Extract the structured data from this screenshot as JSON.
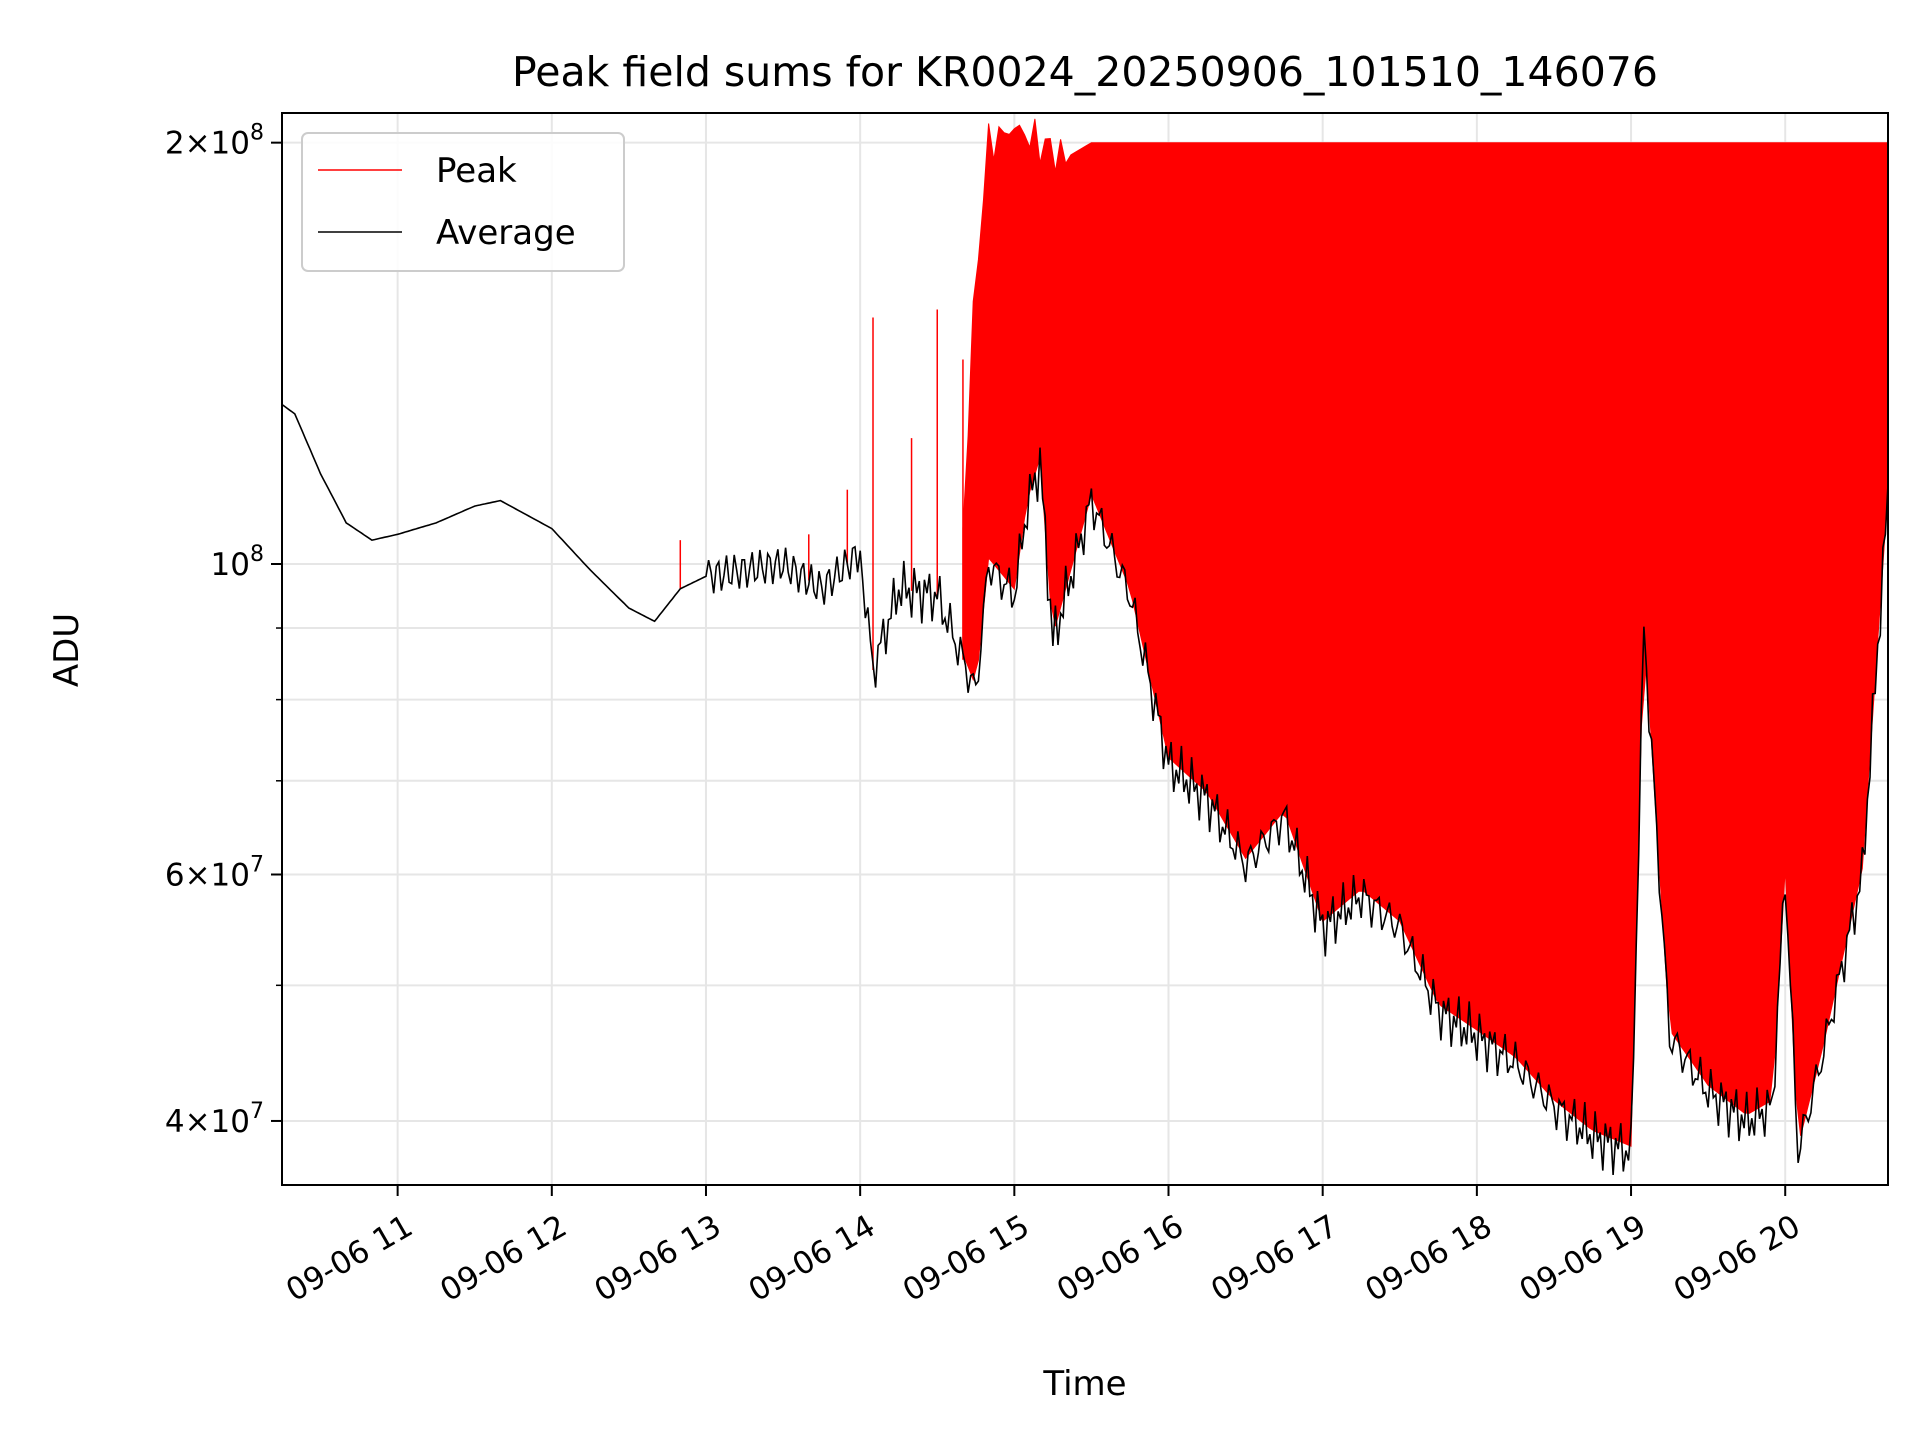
{
  "chart_data": {
    "type": "line",
    "title": "Peak field sums for KR0024_20250906_101510_146076",
    "xlabel": "Time",
    "ylabel": "ADU",
    "x_type": "time",
    "xlim": [
      "09-06 10:15",
      "09-06 20:40"
    ],
    "ylim": [
      36000000,
      210000000
    ],
    "yscale": "log",
    "grid": true,
    "legend_position": "top-left",
    "x_ticks": [
      {
        "value": "09-06 11:00",
        "label": "09-06 11"
      },
      {
        "value": "09-06 12:00",
        "label": "09-06 12"
      },
      {
        "value": "09-06 13:00",
        "label": "09-06 13"
      },
      {
        "value": "09-06 14:00",
        "label": "09-06 14"
      },
      {
        "value": "09-06 15:00",
        "label": "09-06 15"
      },
      {
        "value": "09-06 16:00",
        "label": "09-06 16"
      },
      {
        "value": "09-06 17:00",
        "label": "09-06 17"
      },
      {
        "value": "09-06 18:00",
        "label": "09-06 18"
      },
      {
        "value": "09-06 19:00",
        "label": "09-06 19"
      },
      {
        "value": "09-06 20:00",
        "label": "09-06 20"
      }
    ],
    "y_major_ticks": [
      {
        "value": 40000000,
        "mantissa": "4",
        "exponent": "7"
      },
      {
        "value": 60000000,
        "mantissa": "6",
        "exponent": "7"
      },
      {
        "value": 100000000,
        "mantissa": "",
        "exponent": "8"
      },
      {
        "value": 200000000,
        "mantissa": "2",
        "exponent": "8"
      }
    ],
    "y_minor_ticks": [
      50000000,
      70000000,
      80000000,
      90000000
    ],
    "series": [
      {
        "name": "Peak",
        "color": "#ff0000",
        "note": "dense spikes; baseline follows the Average series, spike envelope given as peak_upper",
        "peak_upper": {
          "x": [
            "09-06 14:40",
            "09-06 14:45",
            "09-06 14:50",
            "09-06 15:00",
            "09-06 15:10",
            "09-06 15:20",
            "09-06 15:30",
            "09-06 15:45",
            "09-06 16:00",
            "09-06 16:15",
            "09-06 16:30",
            "09-06 16:45",
            "09-06 17:00",
            "09-06 17:30",
            "09-06 18:00",
            "09-06 18:30",
            "09-06 19:00",
            "09-06 19:30",
            "09-06 20:00",
            "09-06 20:30",
            "09-06 20:40"
          ],
          "y": [
            105000000,
            160000000,
            200000000,
            205000000,
            200000000,
            195000000,
            200000000,
            200000000,
            200000000,
            200000000,
            200000000,
            200000000,
            200000000,
            200000000,
            200000000,
            200000000,
            200000000,
            200000000,
            200000000,
            200000000,
            200000000
          ]
        },
        "isolated_spikes": [
          {
            "x": "09-06 12:50",
            "y": 104000000
          },
          {
            "x": "09-06 13:40",
            "y": 105000000
          },
          {
            "x": "09-06 13:55",
            "y": 113000000
          },
          {
            "x": "09-06 14:05",
            "y": 150000000
          },
          {
            "x": "09-06 14:20",
            "y": 123000000
          },
          {
            "x": "09-06 14:30",
            "y": 152000000
          },
          {
            "x": "09-06 14:40",
            "y": 140000000
          }
        ]
      },
      {
        "name": "Average",
        "color": "#000000",
        "x": [
          "09-06 10:15",
          "09-06 10:20",
          "09-06 10:30",
          "09-06 10:40",
          "09-06 10:50",
          "09-06 11:00",
          "09-06 11:15",
          "09-06 11:30",
          "09-06 11:40",
          "09-06 12:00",
          "09-06 12:15",
          "09-06 12:30",
          "09-06 12:40",
          "09-06 12:50",
          "09-06 13:00",
          "09-06 13:15",
          "09-06 13:30",
          "09-06 13:45",
          "09-06 14:00",
          "09-06 14:05",
          "09-06 14:15",
          "09-06 14:30",
          "09-06 14:45",
          "09-06 14:50",
          "09-06 15:00",
          "09-06 15:05",
          "09-06 15:10",
          "09-06 15:15",
          "09-06 15:30",
          "09-06 15:45",
          "09-06 16:00",
          "09-06 16:15",
          "09-06 16:30",
          "09-06 16:45",
          "09-06 17:00",
          "09-06 17:15",
          "09-06 17:30",
          "09-06 17:45",
          "09-06 18:00",
          "09-06 18:15",
          "09-06 18:30",
          "09-06 18:45",
          "09-06 19:00",
          "09-06 19:05",
          "09-06 19:15",
          "09-06 19:30",
          "09-06 19:45",
          "09-06 19:55",
          "09-06 20:00",
          "09-06 20:05",
          "09-06 20:15",
          "09-06 20:30",
          "09-06 20:40"
        ],
        "y": [
          130000000,
          128000000,
          116000000,
          107000000,
          104000000,
          105000000,
          107000000,
          110000000,
          111000000,
          106000000,
          99000000,
          93000000,
          91000000,
          96000000,
          98000000,
          99000000,
          100000000,
          96000000,
          102000000,
          84000000,
          96000000,
          95000000,
          81000000,
          100000000,
          95000000,
          110000000,
          118000000,
          88000000,
          111000000,
          95000000,
          72000000,
          68000000,
          61000000,
          66000000,
          55000000,
          58000000,
          55000000,
          48000000,
          46000000,
          44000000,
          41000000,
          39000000,
          38000000,
          90000000,
          46000000,
          42000000,
          40000000,
          41000000,
          60000000,
          38000000,
          45000000,
          60000000,
          112000000
        ]
      }
    ]
  }
}
